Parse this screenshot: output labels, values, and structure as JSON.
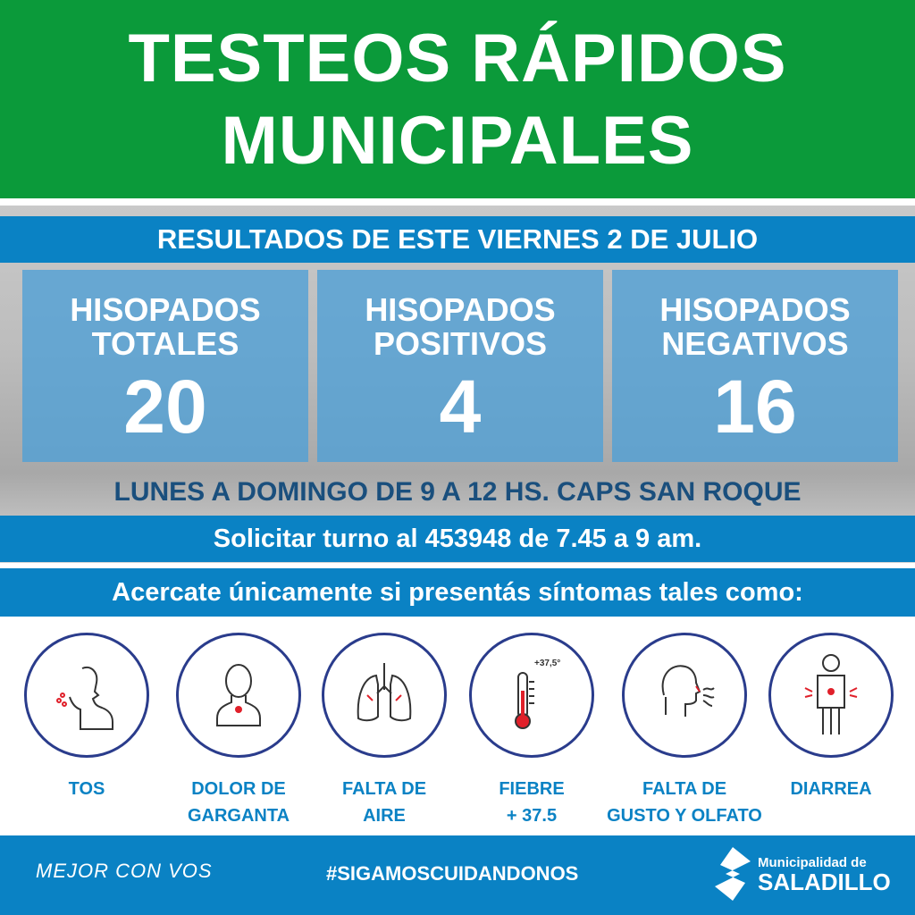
{
  "title": {
    "line1": "TESTEOS RÁPIDOS",
    "line2": "MUNICIPALES"
  },
  "results_heading": "RESULTADOS DE ESTE VIERNES 2 DE JULIO",
  "stats": [
    {
      "label1": "HISOPADOS",
      "label2": "TOTALES",
      "value": "20"
    },
    {
      "label1": "HISOPADOS",
      "label2": "POSITIVOS",
      "value": "4"
    },
    {
      "label1": "HISOPADOS",
      "label2": "NEGATIVOS",
      "value": "16"
    }
  ],
  "schedule": "LUNES A DOMINGO DE 9 A 12 HS. CAPS SAN ROQUE",
  "appointment": "Solicitar turno al 453948 de 7.45 a 9 am.",
  "symptoms_heading": "Acercate únicamente si presentás síntomas tales como:",
  "symptoms": [
    {
      "l1": "TOS",
      "l2": "",
      "icon": "cough-icon"
    },
    {
      "l1": "DOLOR DE",
      "l2": "GARGANTA",
      "icon": "sore-throat-icon"
    },
    {
      "l1": "FALTA DE",
      "l2": "AIRE",
      "icon": "lungs-icon"
    },
    {
      "l1": "FIEBRE",
      "l2": "+ 37.5",
      "icon": "thermometer-icon",
      "icon_text": "+37,5°"
    },
    {
      "l1": "FALTA DE",
      "l2": "GUSTO Y OLFATO",
      "icon": "smell-icon"
    },
    {
      "l1": "DIARREA",
      "l2": "",
      "icon": "stomach-icon"
    }
  ],
  "footer": {
    "slogan": "MEJOR CON VOS",
    "hashtag": "#SIGAMOSCUIDANDONOS",
    "org_line1": "Municipalidad de",
    "org_line2": "SALADILLO"
  },
  "colors": {
    "green": "#0b9a3a",
    "blue": "#0a82c4",
    "dark_blue": "#1a4f7d",
    "accent_red": "#e0202a"
  }
}
